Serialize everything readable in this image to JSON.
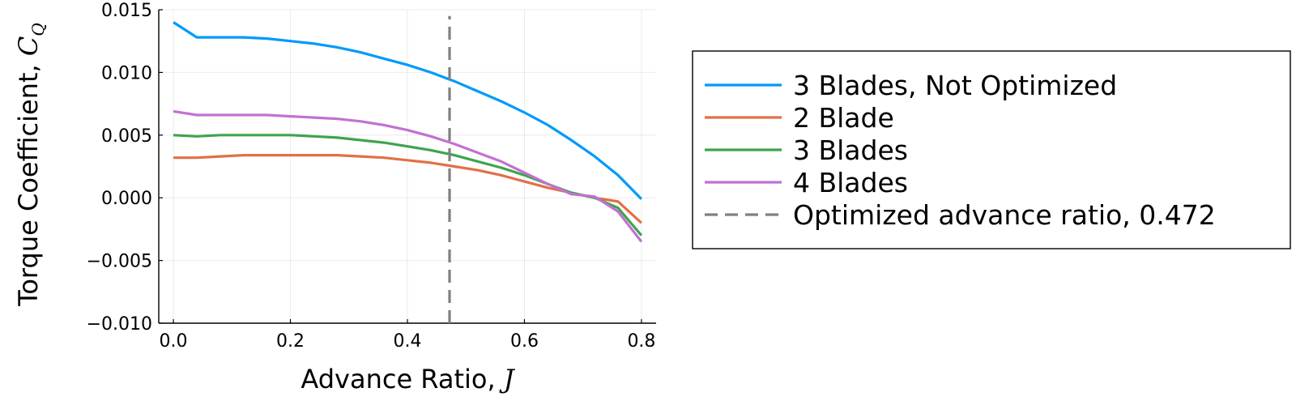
{
  "chart_data": {
    "type": "line",
    "xlabel": {
      "text": "Advance Ratio, ",
      "math": "J"
    },
    "ylabel": {
      "text": "Torque Coefficient, ",
      "math": "C",
      "sub": "Q"
    },
    "xlim": [
      -0.025,
      0.825
    ],
    "ylim": [
      -0.01,
      0.015
    ],
    "xticks": [
      0.0,
      0.2,
      0.4,
      0.6,
      0.8
    ],
    "xtick_labels": [
      "0.0",
      "0.2",
      "0.4",
      "0.6",
      "0.8"
    ],
    "yticks": [
      -0.01,
      -0.005,
      0.0,
      0.005,
      0.01,
      0.015
    ],
    "ytick_labels": [
      "−0.010",
      "−0.005",
      "0.000",
      "0.005",
      "0.010",
      "0.015"
    ],
    "grid": true,
    "legend_placement": "outside-right",
    "series": [
      {
        "name": "3 Blades, Not Optimized",
        "color": "#009AFA",
        "x": [
          0.0,
          0.04,
          0.08,
          0.12,
          0.16,
          0.2,
          0.24,
          0.28,
          0.32,
          0.36,
          0.4,
          0.44,
          0.48,
          0.52,
          0.56,
          0.6,
          0.64,
          0.68,
          0.72,
          0.76,
          0.8
        ],
        "y": [
          0.014,
          0.0128,
          0.0128,
          0.0128,
          0.0127,
          0.0125,
          0.0123,
          0.012,
          0.0116,
          0.0111,
          0.0106,
          0.01,
          0.0093,
          0.0085,
          0.0077,
          0.0068,
          0.0058,
          0.0046,
          0.0033,
          0.0018,
          -0.0001
        ],
        "dashed": false
      },
      {
        "name": "2 Blade",
        "color": "#E36F47",
        "x": [
          0.0,
          0.04,
          0.08,
          0.12,
          0.16,
          0.2,
          0.24,
          0.28,
          0.32,
          0.36,
          0.4,
          0.44,
          0.48,
          0.52,
          0.56,
          0.6,
          0.64,
          0.68,
          0.72,
          0.76,
          0.8
        ],
        "y": [
          0.0032,
          0.0032,
          0.0033,
          0.0034,
          0.0034,
          0.0034,
          0.0034,
          0.0034,
          0.0033,
          0.0032,
          0.003,
          0.0028,
          0.0025,
          0.0022,
          0.0018,
          0.0013,
          0.0008,
          0.0004,
          0.0,
          -0.0003,
          -0.002
        ],
        "dashed": false
      },
      {
        "name": "3 Blades",
        "color": "#3EA44E",
        "x": [
          0.0,
          0.04,
          0.08,
          0.12,
          0.16,
          0.2,
          0.24,
          0.28,
          0.32,
          0.36,
          0.4,
          0.44,
          0.48,
          0.52,
          0.56,
          0.6,
          0.64,
          0.68,
          0.72,
          0.76,
          0.8
        ],
        "y": [
          0.005,
          0.0049,
          0.005,
          0.005,
          0.005,
          0.005,
          0.0049,
          0.0048,
          0.0046,
          0.0044,
          0.0041,
          0.0038,
          0.0034,
          0.0029,
          0.0024,
          0.0018,
          0.0011,
          0.0004,
          0.0,
          -0.0008,
          -0.003
        ],
        "dashed": false
      },
      {
        "name": "4 Blades",
        "color": "#C271D2",
        "x": [
          0.0,
          0.04,
          0.08,
          0.12,
          0.16,
          0.2,
          0.24,
          0.28,
          0.32,
          0.36,
          0.4,
          0.44,
          0.48,
          0.52,
          0.56,
          0.6,
          0.64,
          0.68,
          0.72,
          0.76,
          0.8
        ],
        "y": [
          0.0069,
          0.0066,
          0.0066,
          0.0066,
          0.0066,
          0.0065,
          0.0064,
          0.0063,
          0.0061,
          0.0058,
          0.0054,
          0.0049,
          0.0043,
          0.0036,
          0.0029,
          0.002,
          0.0011,
          0.0003,
          0.0001,
          -0.0011,
          -0.0035
        ],
        "dashed": false
      },
      {
        "name": "Optimized advance ratio, 0.472",
        "color": "#808080",
        "x": [
          0.472,
          0.472
        ],
        "y": [
          -0.01,
          0.0145
        ],
        "dashed": true
      }
    ]
  }
}
